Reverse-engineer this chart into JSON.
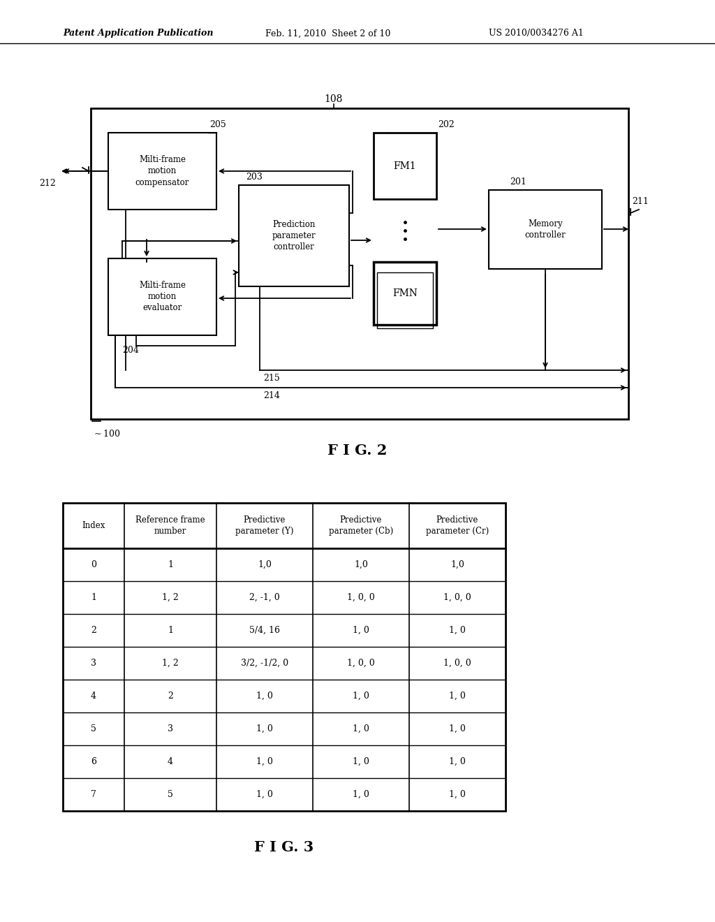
{
  "page_header_left": "Patent Application Publication",
  "page_header_mid": "Feb. 11, 2010  Sheet 2 of 10",
  "page_header_right": "US 2010/0034276 A1",
  "fig2_label": "F I G. 2",
  "fig3_label": "F I G. 3",
  "label_108": "108",
  "label_205": "205",
  "label_203": "203",
  "label_202": "202",
  "label_201": "201",
  "label_212": "212",
  "label_211": "211",
  "label_204": "204",
  "label_215": "215",
  "label_214": "214",
  "label_100": "100",
  "box_compensator": "Milti-frame\nmotion\ncompensator",
  "box_evaluator": "Milti-frame\nmotion\nevaluator",
  "box_prediction": "Prediction\nparameter\ncontroller",
  "box_fm1": "FM1",
  "box_fmn": "FMN",
  "box_memory": "Memory\ncontroller",
  "table_headers": [
    "Index",
    "Reference frame\nnumber",
    "Predictive\nparameter (Y)",
    "Predictive\nparameter (Cb)",
    "Predictive\nparameter (Cr)"
  ],
  "table_rows": [
    [
      "0",
      "1",
      "1,0",
      "1,0",
      "1,0"
    ],
    [
      "1",
      "1, 2",
      "2, -1, 0",
      "1, 0, 0",
      "1, 0, 0"
    ],
    [
      "2",
      "1",
      "5/4, 16",
      "1, 0",
      "1, 0"
    ],
    [
      "3",
      "1, 2",
      "3/2, -1/2, 0",
      "1, 0, 0",
      "1, 0, 0"
    ],
    [
      "4",
      "2",
      "1, 0",
      "1, 0",
      "1, 0"
    ],
    [
      "5",
      "3",
      "1, 0",
      "1, 0",
      "1, 0"
    ],
    [
      "6",
      "4",
      "1, 0",
      "1, 0",
      "1, 0"
    ],
    [
      "7",
      "5",
      "1, 0",
      "1, 0",
      "1, 0"
    ]
  ],
  "bg_color": "#ffffff",
  "line_color": "#000000",
  "text_color": "#000000"
}
